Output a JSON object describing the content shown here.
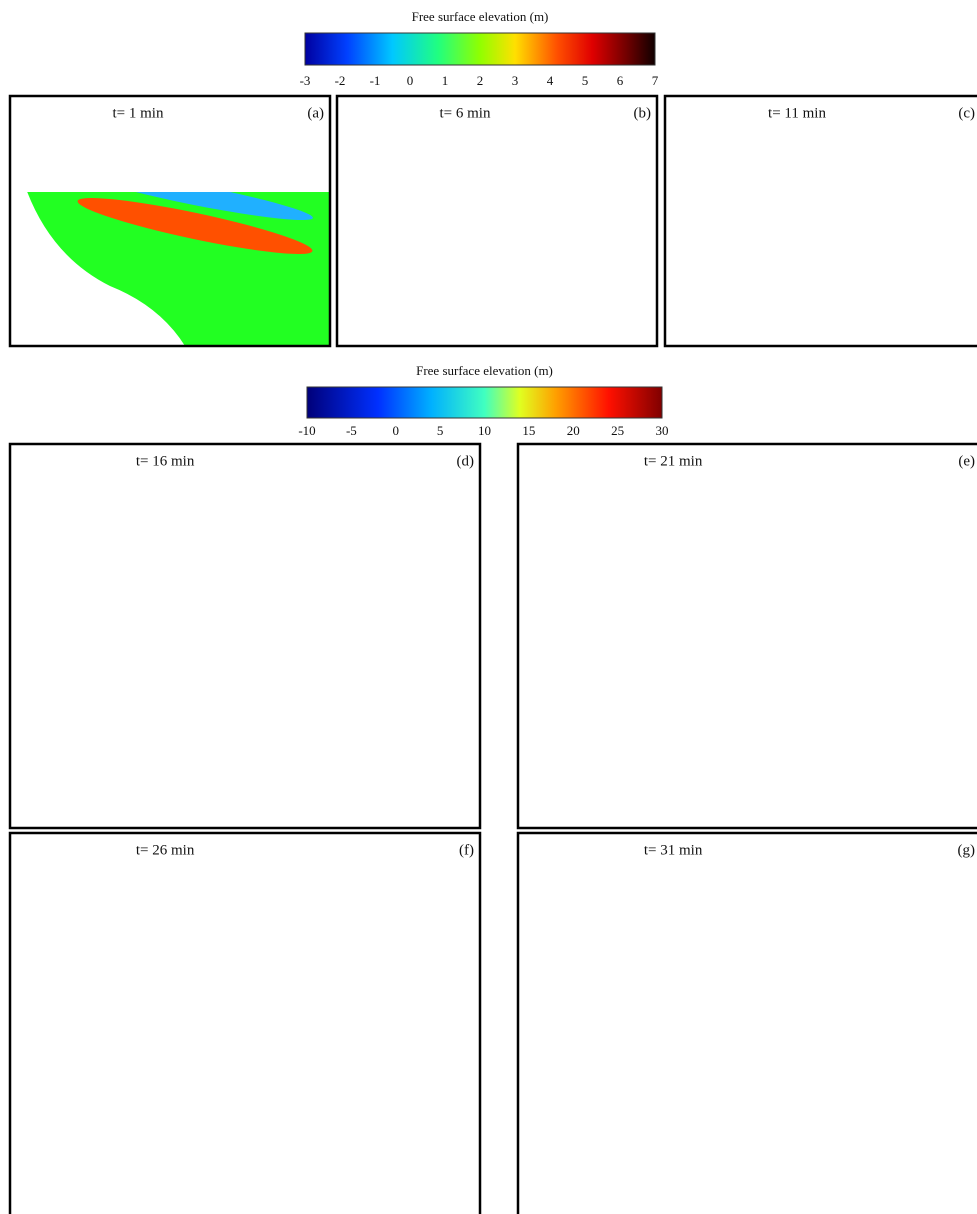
{
  "colorbars": [
    {
      "title": "Free surface elevation (m)",
      "ticks": [
        -3,
        -2,
        -1,
        0,
        1,
        2,
        3,
        4,
        5,
        6,
        7
      ]
    },
    {
      "title": "Free surface elevation (m)",
      "ticks": [
        -10,
        -5,
        0,
        5,
        10,
        15,
        20,
        25,
        30
      ]
    }
  ],
  "panels": [
    {
      "time": "t= 1 min",
      "label": "(a)"
    },
    {
      "time": "t= 6 min",
      "label": "(b)"
    },
    {
      "time": "t= 11 min",
      "label": "(c)"
    },
    {
      "time": "t= 16 min",
      "label": "(d)"
    },
    {
      "time": "t= 21 min",
      "label": "(e)"
    },
    {
      "time": "t= 26 min",
      "label": "(f)"
    },
    {
      "time": "t= 31 min",
      "label": "(g)"
    }
  ]
}
